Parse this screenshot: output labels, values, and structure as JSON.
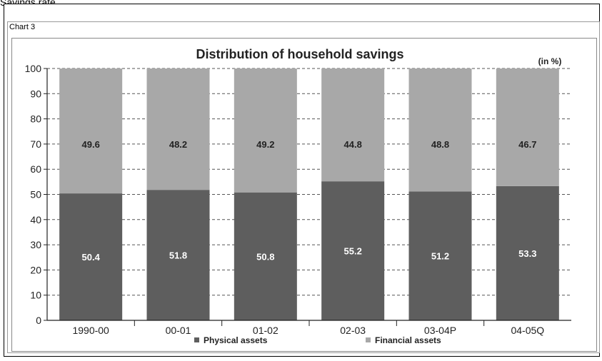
{
  "page": {
    "heading": "Savings rate"
  },
  "chart_tag": "Chart 3",
  "chart_data": {
    "type": "bar",
    "stacked": true,
    "title": "Distribution of household savings",
    "unit_note": "(in %)",
    "categories": [
      "1990-00",
      "00-01",
      "01-02",
      "02-03",
      "03-04P",
      "04-05Q"
    ],
    "series": [
      {
        "name": "Physical assets",
        "values": [
          50.4,
          51.8,
          50.8,
          55.2,
          51.2,
          53.3
        ],
        "color": "#5e5e5e"
      },
      {
        "name": "Financial assets",
        "values": [
          49.6,
          48.2,
          49.2,
          44.8,
          48.8,
          46.7
        ],
        "color": "#a8a8a8"
      }
    ],
    "ylim": [
      0,
      100
    ],
    "yticks": [
      0,
      10,
      20,
      30,
      40,
      50,
      60,
      70,
      80,
      90,
      100
    ],
    "grid": true,
    "legend_position": "bottom"
  }
}
